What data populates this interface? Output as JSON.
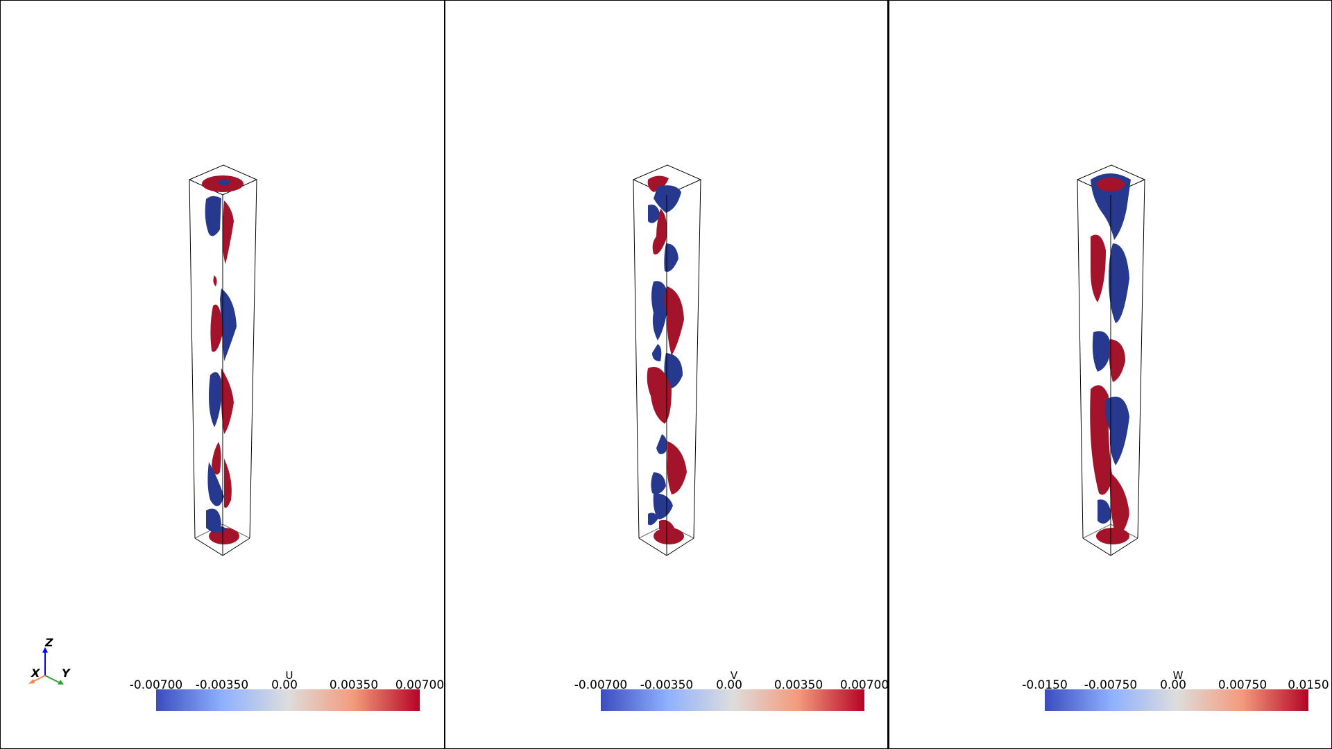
{
  "viewports": [
    {
      "id": "u",
      "colorbar": {
        "title": "U",
        "ticks": [
          "-0.00700",
          "-0.00350",
          "0.00",
          "0.00350",
          "0.00700"
        ]
      }
    },
    {
      "id": "v",
      "colorbar": {
        "title": "V",
        "ticks": [
          "-0.00700",
          "-0.00350",
          "0.00",
          "0.00350",
          "0.00700"
        ]
      }
    },
    {
      "id": "w",
      "colorbar": {
        "title": "W",
        "ticks": [
          "-0.0150",
          "-0.00750",
          "0.00",
          "0.00750",
          "0.0150"
        ]
      }
    }
  ],
  "axes": {
    "z": "Z",
    "x": "X",
    "y": "Y"
  },
  "colors": {
    "negative": "#3b4cc0",
    "mid": "#dddddd",
    "positive": "#b40426",
    "iso_negative": "#26398f",
    "iso_positive": "#a3142a"
  }
}
